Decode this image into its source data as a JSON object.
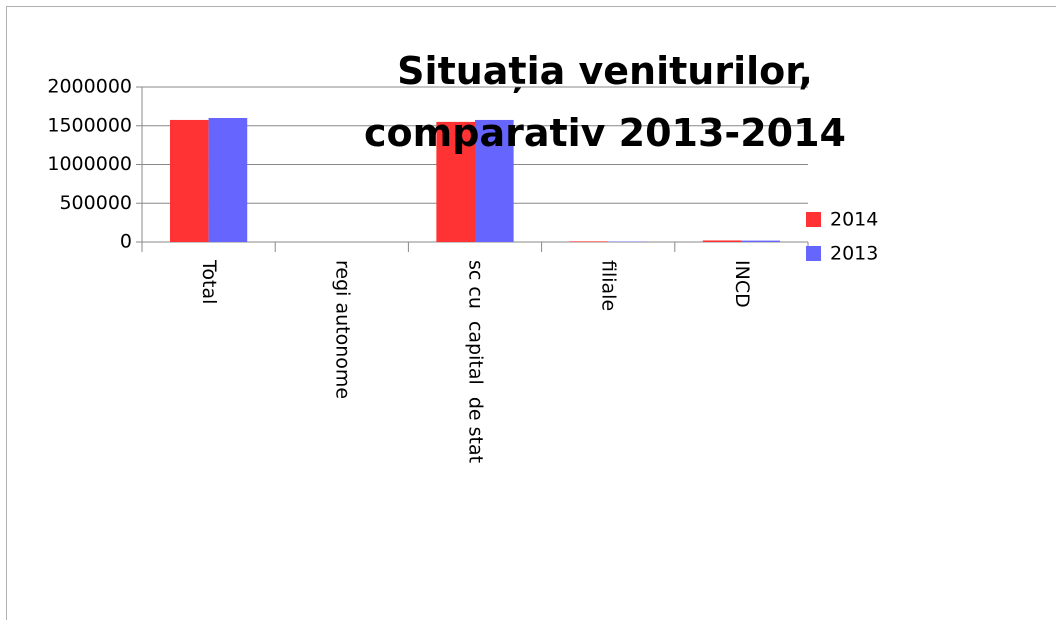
{
  "chart_data": {
    "type": "bar",
    "title": "Situația veniturilor, comparativ 2013-2014",
    "categories": [
      "Total",
      "regi autonome",
      "sc cu  capital  de stat",
      "filiale",
      "INCD"
    ],
    "series": [
      {
        "name": "2014",
        "color": "#ff3333",
        "values": [
          1575000,
          0,
          1550000,
          8000,
          20000
        ]
      },
      {
        "name": "2013",
        "color": "#6666ff",
        "values": [
          1600000,
          0,
          1575000,
          5000,
          18000
        ]
      }
    ],
    "ylim": [
      0,
      2000000
    ],
    "yticks": [
      0,
      500000,
      1000000,
      1500000,
      2000000
    ],
    "grid": true,
    "legend": "right"
  }
}
